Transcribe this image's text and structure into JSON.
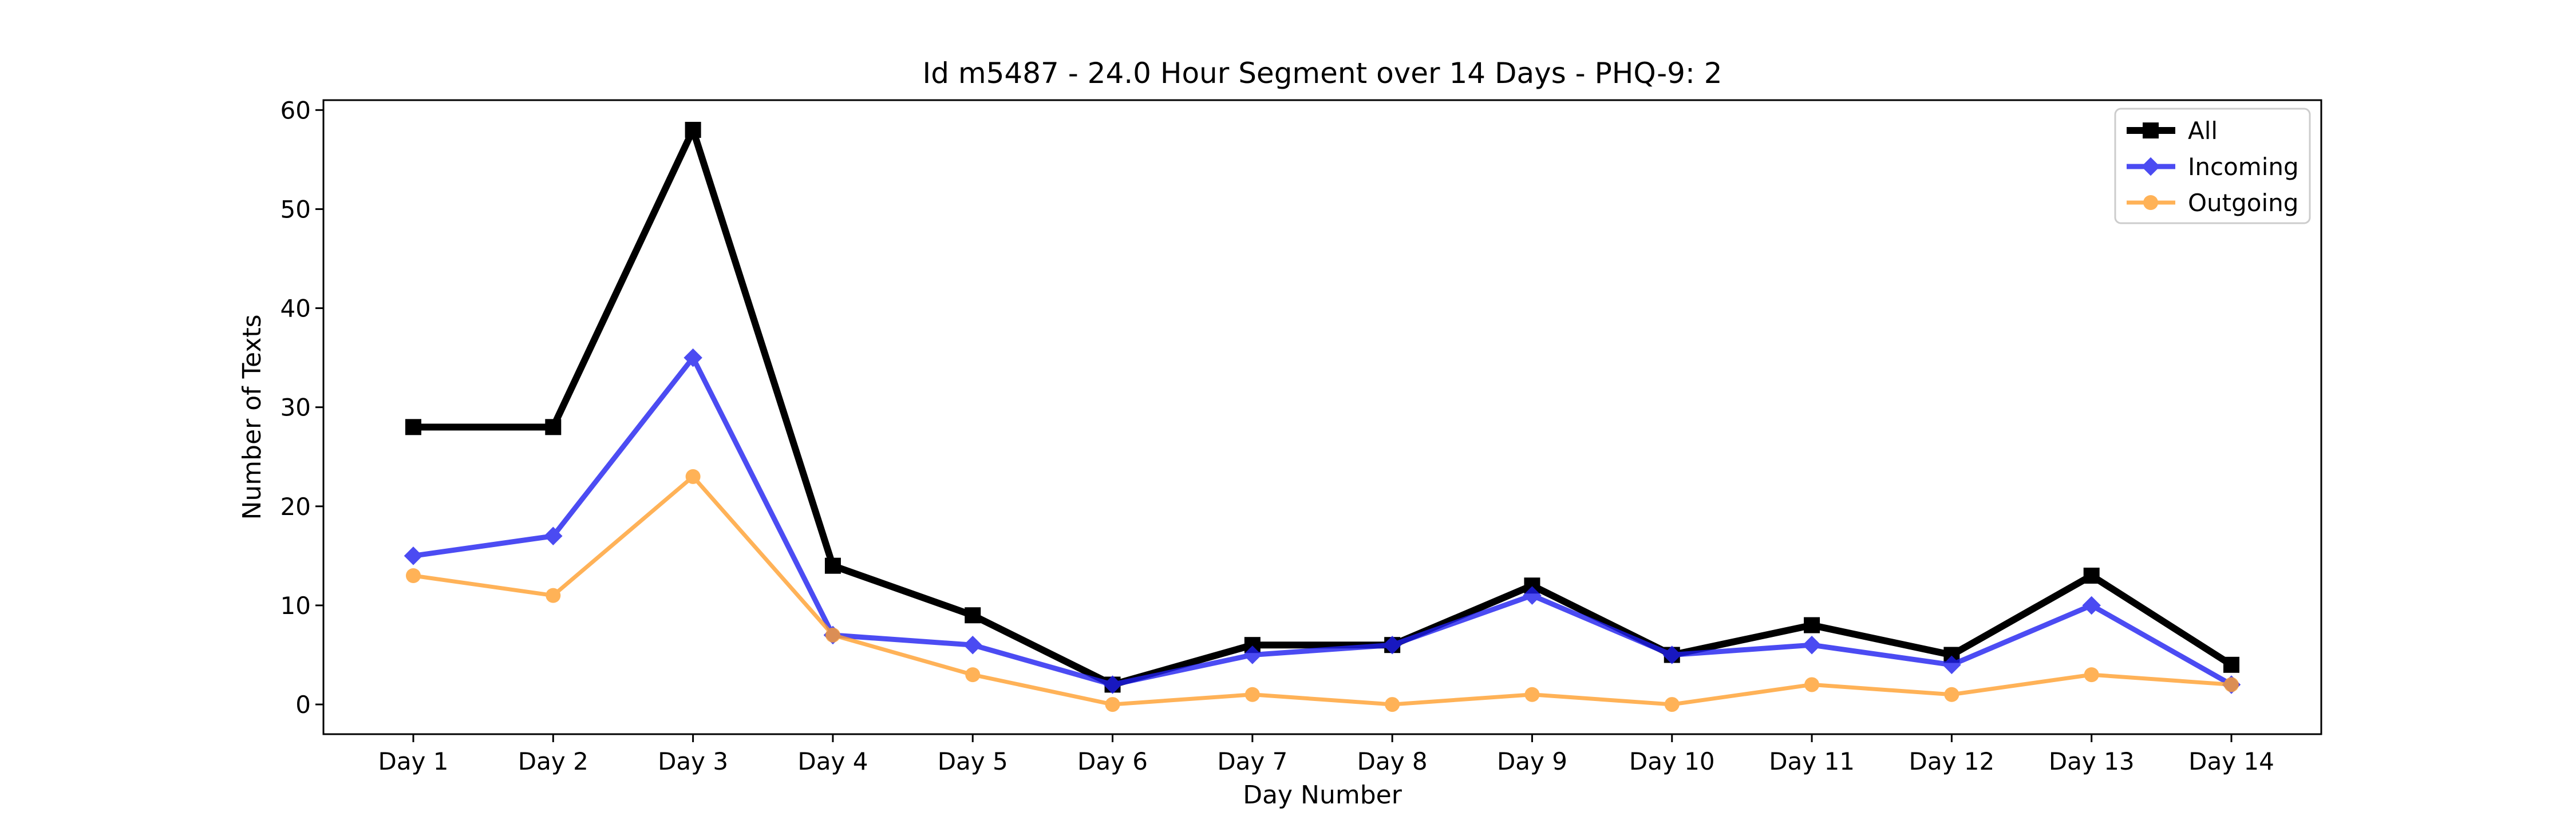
{
  "chart_data": {
    "type": "line",
    "title": "Id m5487 - 24.0 Hour Segment over 14 Days - PHQ-9: 2",
    "xlabel": "Day Number",
    "ylabel": "Number of Texts",
    "categories": [
      "Day 1",
      "Day 2",
      "Day 3",
      "Day 4",
      "Day 5",
      "Day 6",
      "Day 7",
      "Day 8",
      "Day 9",
      "Day 10",
      "Day 11",
      "Day 12",
      "Day 13",
      "Day 14"
    ],
    "ylim": [
      -3,
      61
    ],
    "yticks": [
      0,
      10,
      20,
      30,
      40,
      50,
      60
    ],
    "grid": false,
    "legend_position": "top-right",
    "series": [
      {
        "name": "All",
        "color": "#000000",
        "marker": "square",
        "values": [
          28,
          28,
          58,
          14,
          9,
          2,
          6,
          6,
          12,
          5,
          8,
          5,
          13,
          4
        ]
      },
      {
        "name": "Incoming",
        "color": "#1f1ff0",
        "marker": "diamond",
        "values": [
          15,
          17,
          35,
          7,
          6,
          2,
          5,
          6,
          11,
          5,
          6,
          4,
          10,
          2
        ]
      },
      {
        "name": "Outgoing",
        "color": "#ff9f2e",
        "marker": "circle",
        "values": [
          13,
          11,
          23,
          7,
          3,
          0,
          1,
          0,
          1,
          0,
          2,
          1,
          3,
          2
        ]
      }
    ]
  }
}
